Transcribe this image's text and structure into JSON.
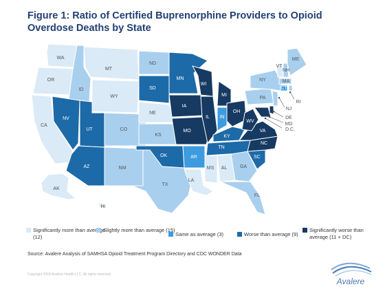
{
  "title": "Figure 1: Ratio of Certified Buprenorphine Providers to Opioid Overdose Deaths by State",
  "colors": {
    "sig_more": "#daeaf6",
    "slight_more": "#a9cfee",
    "same": "#3d9be0",
    "worse": "#1d6aa8",
    "sig_worse": "#163a62"
  },
  "legend": [
    {
      "key": "sig_more",
      "label": "Significantly more than average (12)"
    },
    {
      "key": "slight_more",
      "label": "Slightly more than average (15)"
    },
    {
      "key": "same",
      "label": "Same as average (3)"
    },
    {
      "key": "worse",
      "label": "Worse than average (9)"
    },
    {
      "key": "sig_worse",
      "label": "Significantly worse than average (11 + DC)"
    }
  ],
  "states": [
    {
      "abbr": "WA",
      "category": "sig_more"
    },
    {
      "abbr": "OR",
      "category": "sig_more"
    },
    {
      "abbr": "CA",
      "category": "sig_more"
    },
    {
      "abbr": "MT",
      "category": "sig_more"
    },
    {
      "abbr": "WY",
      "category": "sig_more"
    },
    {
      "abbr": "NE",
      "category": "sig_more"
    },
    {
      "abbr": "LA",
      "category": "sig_more"
    },
    {
      "abbr": "MS",
      "category": "sig_more"
    },
    {
      "abbr": "AL",
      "category": "sig_more"
    },
    {
      "abbr": "AK",
      "category": "sig_more"
    },
    {
      "abbr": "HI",
      "category": "sig_more"
    },
    {
      "abbr": "VT",
      "category": "sig_more"
    },
    {
      "abbr": "ID",
      "category": "slight_more"
    },
    {
      "abbr": "ND",
      "category": "slight_more"
    },
    {
      "abbr": "CO",
      "category": "slight_more"
    },
    {
      "abbr": "KS",
      "category": "slight_more"
    },
    {
      "abbr": "NM",
      "category": "slight_more"
    },
    {
      "abbr": "TX",
      "category": "slight_more"
    },
    {
      "abbr": "GA",
      "category": "slight_more"
    },
    {
      "abbr": "FL",
      "category": "slight_more"
    },
    {
      "abbr": "PA",
      "category": "slight_more"
    },
    {
      "abbr": "NY",
      "category": "slight_more"
    },
    {
      "abbr": "ME",
      "category": "slight_more"
    },
    {
      "abbr": "NH",
      "category": "slight_more"
    },
    {
      "abbr": "MA",
      "category": "slight_more"
    },
    {
      "abbr": "RI",
      "category": "slight_more"
    },
    {
      "abbr": "NJ",
      "category": "slight_more"
    },
    {
      "abbr": "IN",
      "category": "same"
    },
    {
      "abbr": "AR",
      "category": "same"
    },
    {
      "abbr": "CT",
      "category": "same"
    },
    {
      "abbr": "NV",
      "category": "worse"
    },
    {
      "abbr": "UT",
      "category": "worse"
    },
    {
      "abbr": "AZ",
      "category": "worse"
    },
    {
      "abbr": "SD",
      "category": "worse"
    },
    {
      "abbr": "MN",
      "category": "worse"
    },
    {
      "abbr": "OK",
      "category": "worse"
    },
    {
      "abbr": "KY",
      "category": "worse"
    },
    {
      "abbr": "TN",
      "category": "worse"
    },
    {
      "abbr": "SC",
      "category": "worse"
    },
    {
      "abbr": "IA",
      "category": "sig_worse"
    },
    {
      "abbr": "MO",
      "category": "sig_worse"
    },
    {
      "abbr": "WI",
      "category": "sig_worse"
    },
    {
      "abbr": "IL",
      "category": "sig_worse"
    },
    {
      "abbr": "MI",
      "category": "sig_worse"
    },
    {
      "abbr": "OH",
      "category": "sig_worse"
    },
    {
      "abbr": "WV",
      "category": "sig_worse"
    },
    {
      "abbr": "VA",
      "category": "sig_worse"
    },
    {
      "abbr": "NC",
      "category": "sig_worse"
    },
    {
      "abbr": "MD",
      "category": "sig_worse"
    },
    {
      "abbr": "DE",
      "category": "sig_worse"
    },
    {
      "abbr": "D.C.",
      "category": "sig_worse"
    }
  ],
  "source": "Source: Avalere Analysis of SAMHSA Opioid Treatment Program Directory and CDC WONDER Data",
  "copyright": "Copyright 2018 Avalere Health LLC. All rights reserved.",
  "logo_text": "Avalere"
}
